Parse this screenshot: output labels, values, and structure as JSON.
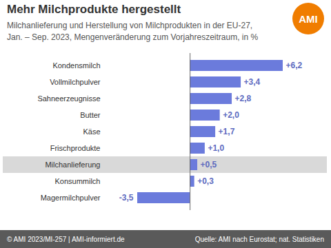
{
  "chart_data": {
    "type": "bar",
    "orientation": "horizontal",
    "title": "Mehr Milchprodukte hergestellt",
    "subtitle": "Milchanlieferung und Herstellung von Milchprodukten in der EU-27,\nJan. – Sep. 2023, Mengenveränderung zum Vorjahreszeitraum, in %",
    "logo": "AMI",
    "copyright": "© AMI 2023/MI-257 | AMI-informiert.de",
    "source": "Quelle: AMI nach Eurostat; nat. Statistiken",
    "categories": [
      "Kondensmilch",
      "Vollmilchpulver",
      "Sahneerzeugnisse",
      "Butter",
      "Käse",
      "Frischprodukte",
      "Milchanlieferung",
      "Konsummilch",
      "Magermilchpulver"
    ],
    "values": [
      6.2,
      3.4,
      2.8,
      2.0,
      1.7,
      1.0,
      0.5,
      0.3,
      -3.5
    ],
    "value_labels": [
      "+6,2",
      "+3,4",
      "+2,8",
      "+2,0",
      "+1,7",
      "+1,0",
      "+0,5",
      "+0,3",
      "-3,5"
    ],
    "color": "#6b7bdc",
    "data_labels": true,
    "tick_labels": "y",
    "grid": false
  }
}
